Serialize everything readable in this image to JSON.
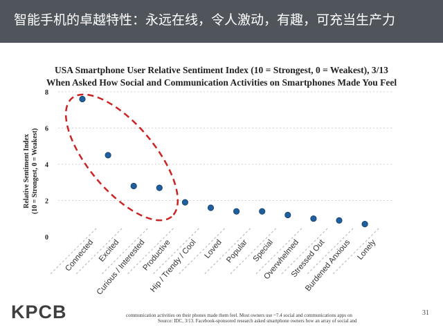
{
  "header": {
    "title": "智能手机的卓越特性：永远在线，令人激动，有趣，可充当生产力"
  },
  "chart_data": {
    "type": "scatter",
    "title_line1": "USA Smartphone User Relative Sentiment Index (10 = Strongest, 0 = Weakest), 3/13",
    "title_line2": "When Asked How Social and Communication Activities on Smartphones Made You Feel",
    "ylabel_line1": "Relative Sentiment Index",
    "ylabel_line2": "(10 = Strongest, 0 = Weakest)",
    "ylim": [
      0,
      8
    ],
    "yticks": [
      0,
      2,
      4,
      6,
      8
    ],
    "grid": true,
    "marker_color": "#1f5f9e",
    "highlight_color": "#cc2222",
    "categories": [
      "Connected",
      "Excited",
      "Curious / Interested",
      "Productive",
      "Hip / Trendy / Cool",
      "Loved",
      "Popular",
      "Special",
      "Overwhelmed",
      "Stressed Out",
      "Burdened Anxious",
      "Lonely"
    ],
    "values": [
      7.6,
      4.5,
      2.8,
      2.7,
      1.9,
      1.6,
      1.4,
      1.4,
      1.2,
      1.0,
      0.9,
      0.7
    ],
    "highlighted_categories": [
      "Connected",
      "Excited",
      "Curious / Interested",
      "Productive"
    ]
  },
  "footer": {
    "logo": "KPCB",
    "footnote_line1": "communication activities on their phones made them feel. Most owners use ~7.4 social and communications apps on",
    "footnote_line2": "Source: IDC, 3/13. Facebook-sponsored research asked smartphone owners how an array of social and",
    "page_number": "31"
  }
}
